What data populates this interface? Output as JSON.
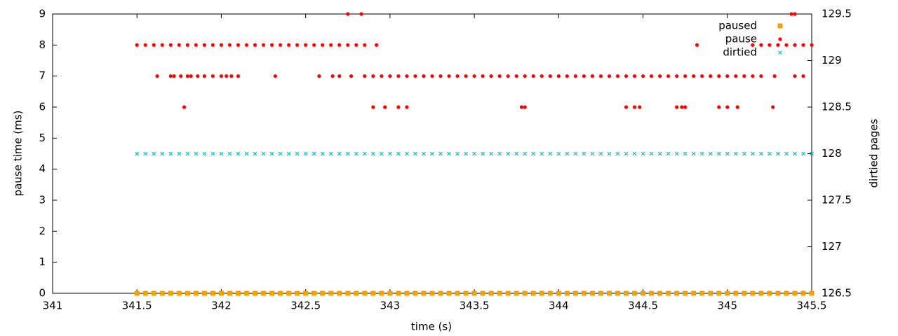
{
  "chart_data": {
    "type": "scatter",
    "xlabel": "time (s)",
    "ylabel": "pause time (ms)",
    "y2label": "dirtied pages",
    "xlim": [
      341,
      345.5
    ],
    "xticks": [
      341,
      341.5,
      342,
      342.5,
      343,
      343.5,
      344,
      344.5,
      345,
      345.5
    ],
    "ylim": [
      0,
      9
    ],
    "yticks": [
      0,
      1,
      2,
      3,
      4,
      5,
      6,
      7,
      8,
      9
    ],
    "y2lim": [
      126.5,
      129.5
    ],
    "y2ticks": [
      126.5,
      127,
      127.5,
      128,
      128.5,
      129,
      129.5
    ],
    "legend": "top-right",
    "grid": false,
    "x": [
      341.5,
      341.55,
      341.6,
      341.65,
      341.7,
      341.75,
      341.8,
      341.85,
      341.9,
      341.95,
      342,
      342.05,
      342.1,
      342.15,
      342.2,
      342.25,
      342.3,
      342.35,
      342.4,
      342.45,
      342.5,
      342.55,
      342.6,
      342.65,
      342.7,
      342.75,
      342.8,
      342.85,
      342.9,
      342.95,
      343,
      343.05,
      343.1,
      343.15,
      343.2,
      343.25,
      343.3,
      343.35,
      343.4,
      343.45,
      343.5,
      343.55,
      343.6,
      343.65,
      343.7,
      343.75,
      343.8,
      343.85,
      343.9,
      343.95,
      344,
      344.05,
      344.1,
      344.15,
      344.2,
      344.25,
      344.3,
      344.35,
      344.4,
      344.45,
      344.5,
      344.55,
      344.6,
      344.65,
      344.7,
      344.75,
      344.8,
      344.85,
      344.9,
      344.95,
      345,
      345.05,
      345.1,
      345.15,
      345.2,
      345.25,
      345.3,
      345.35,
      345.4,
      345.45,
      345.5
    ],
    "series": [
      {
        "name": "paused",
        "color": "#f0a000",
        "marker": "square",
        "values": [
          0,
          0,
          0,
          0,
          0,
          0,
          0,
          0,
          0,
          0,
          0,
          0,
          0,
          0,
          0,
          0,
          0,
          0,
          0,
          0,
          0,
          0,
          0,
          0,
          0,
          0,
          0,
          0,
          0,
          0,
          0,
          0,
          0,
          0,
          0,
          0,
          0,
          0,
          0,
          0,
          0,
          0,
          0,
          0,
          0,
          0,
          0,
          0,
          0,
          0,
          0,
          0,
          0,
          0,
          0,
          0,
          0,
          0,
          0,
          0,
          0,
          0,
          0,
          0,
          0,
          0,
          0,
          0,
          0,
          0,
          0,
          0,
          0,
          0,
          0,
          0,
          0,
          0,
          0,
          0,
          0
        ]
      },
      {
        "name": "pause",
        "color": "#ff0000",
        "marker": "circle",
        "x": [
          341.5,
          341.55,
          341.6,
          341.65,
          341.7,
          341.75,
          341.8,
          341.85,
          341.9,
          341.95,
          342,
          342.05,
          342.1,
          342.15,
          342.2,
          342.25,
          342.3,
          342.35,
          342.4,
          342.45,
          342.5,
          342.55,
          342.6,
          342.65,
          342.7,
          342.75,
          342.8,
          342.85,
          342.92,
          341.62,
          341.7,
          341.72,
          341.76,
          341.8,
          341.82,
          341.86,
          341.9,
          341.95,
          342,
          342.03,
          342.06,
          342.1,
          342.32,
          342.58,
          342.66,
          342.7,
          342.77,
          342.85,
          342.9,
          342.95,
          343,
          343.05,
          343.1,
          343.15,
          343.2,
          343.25,
          343.3,
          343.35,
          343.4,
          343.45,
          343.5,
          343.55,
          343.6,
          343.65,
          343.7,
          343.75,
          343.8,
          343.85,
          343.9,
          343.95,
          344,
          344.05,
          344.1,
          344.15,
          344.2,
          344.25,
          344.3,
          344.35,
          344.4,
          344.45,
          344.5,
          344.55,
          344.6,
          344.65,
          344.7,
          344.75,
          344.8,
          344.85,
          344.9,
          344.95,
          345,
          345.05,
          345.1,
          345.15,
          345.2,
          345.28,
          345.4,
          345.45,
          341.78,
          342.9,
          342.97,
          343.05,
          343.1,
          343.78,
          343.8,
          344.4,
          344.45,
          344.48,
          344.7,
          344.73,
          344.75,
          344.95,
          345,
          345.06,
          345.27,
          342.75,
          342.83,
          345.38,
          345.4,
          344.82,
          345.15,
          345.2,
          345.25,
          345.3,
          345.35,
          345.4,
          345.45,
          345.5
        ],
        "values": [
          8,
          8,
          8,
          8,
          8,
          8,
          8,
          8,
          8,
          8,
          8,
          8,
          8,
          8,
          8,
          8,
          8,
          8,
          8,
          8,
          8,
          8,
          8,
          8,
          8,
          8,
          8,
          8,
          8,
          7,
          7,
          7,
          7,
          7,
          7,
          7,
          7,
          7,
          7,
          7,
          7,
          7,
          7,
          7,
          7,
          7,
          7,
          7,
          7,
          7,
          7,
          7,
          7,
          7,
          7,
          7,
          7,
          7,
          7,
          7,
          7,
          7,
          7,
          7,
          7,
          7,
          7,
          7,
          7,
          7,
          7,
          7,
          7,
          7,
          7,
          7,
          7,
          7,
          7,
          7,
          7,
          7,
          7,
          7,
          7,
          7,
          7,
          7,
          7,
          7,
          7,
          7,
          7,
          7,
          7,
          7,
          7,
          7,
          6,
          6,
          6,
          6,
          6,
          6,
          6,
          6,
          6,
          6,
          6,
          6,
          6,
          6,
          6,
          6,
          6,
          9,
          9,
          9,
          9,
          8,
          8,
          8,
          8,
          8,
          8,
          8,
          8,
          8
        ]
      },
      {
        "name": "dirtied",
        "color": "#00c0c0",
        "marker": "cross",
        "axis": "y2",
        "values": [
          128,
          128,
          128,
          128,
          128,
          128,
          128,
          128,
          128,
          128,
          128,
          128,
          128,
          128,
          128,
          128,
          128,
          128,
          128,
          128,
          128,
          128,
          128,
          128,
          128,
          128,
          128,
          128,
          128,
          128,
          128,
          128,
          128,
          128,
          128,
          128,
          128,
          128,
          128,
          128,
          128,
          128,
          128,
          128,
          128,
          128,
          128,
          128,
          128,
          128,
          128,
          128,
          128,
          128,
          128,
          128,
          128,
          128,
          128,
          128,
          128,
          128,
          128,
          128,
          128,
          128,
          128,
          128,
          128,
          128,
          128,
          128,
          128,
          128,
          128,
          128,
          128,
          128,
          128,
          128,
          128
        ]
      }
    ]
  }
}
